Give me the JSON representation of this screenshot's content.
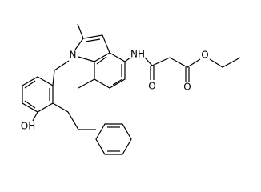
{
  "labels": [
    "N",
    "NH",
    "O",
    "O",
    "O",
    "OH"
  ]
}
